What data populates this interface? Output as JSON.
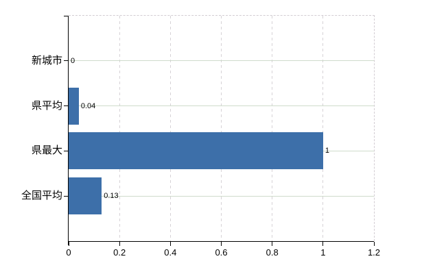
{
  "chart_data": {
    "type": "bar",
    "orientation": "horizontal",
    "title": "",
    "categories": [
      "新城市",
      "県平均",
      "県最大",
      "全国平均"
    ],
    "values": [
      0,
      0.04,
      1,
      0.13
    ],
    "value_labels": [
      "0",
      "0.04",
      "1",
      "0.13"
    ],
    "xlabel": "",
    "ylabel": "",
    "xlim": [
      0,
      1.2
    ],
    "x_ticks": [
      0,
      0.2,
      0.4,
      0.6,
      0.8,
      1,
      1.2
    ],
    "x_tick_labels": [
      "0",
      "0.2",
      "0.4",
      "0.6",
      "0.8",
      "1",
      "1.2"
    ],
    "grid": true,
    "legend": "none",
    "colors": {
      "bar": "#3d6fa9",
      "h_grid": "#cfdbcb",
      "v_grid": "#d6d2d6",
      "plot_border": "#d2ccd2",
      "axis": "#000000",
      "text": "#000000",
      "background": "#ffffff"
    }
  }
}
